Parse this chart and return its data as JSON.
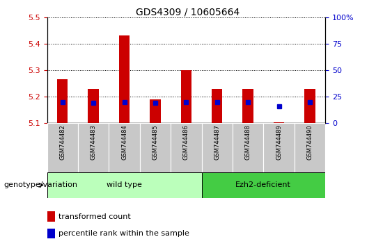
{
  "title": "GDS4309 / 10605664",
  "samples": [
    "GSM744482",
    "GSM744483",
    "GSM744484",
    "GSM744485",
    "GSM744486",
    "GSM744487",
    "GSM744488",
    "GSM744489",
    "GSM744490"
  ],
  "transformed_count": [
    5.265,
    5.23,
    5.43,
    5.19,
    5.3,
    5.23,
    5.23,
    5.102,
    5.23
  ],
  "percentile_rank": [
    20,
    19,
    20,
    19,
    20,
    20,
    20,
    16,
    20
  ],
  "bar_bottom": 5.1,
  "ylim_left": [
    5.1,
    5.5
  ],
  "ylim_right": [
    0,
    100
  ],
  "yticks_left": [
    5.1,
    5.2,
    5.3,
    5.4,
    5.5
  ],
  "yticks_right": [
    0,
    25,
    50,
    75,
    100
  ],
  "yticklabels_right": [
    "0",
    "25",
    "50",
    "75",
    "100%"
  ],
  "bar_color": "#cc0000",
  "dot_color": "#0000cc",
  "wild_type_count": 5,
  "ezh2_count": 4,
  "wild_type_color": "#bbffbb",
  "ezh2_color": "#44cc44",
  "genotype_label": "genotype/variation",
  "left_ytick_color": "#cc0000",
  "right_ytick_color": "#0000cc",
  "grid_color": "#000000",
  "bar_width": 0.35,
  "label_area_color": "#c8c8c8",
  "title_fontsize": 10,
  "tick_fontsize": 8,
  "sample_fontsize": 6,
  "legend_fontsize": 8,
  "genotype_fontsize": 8,
  "strip_fontsize": 8
}
